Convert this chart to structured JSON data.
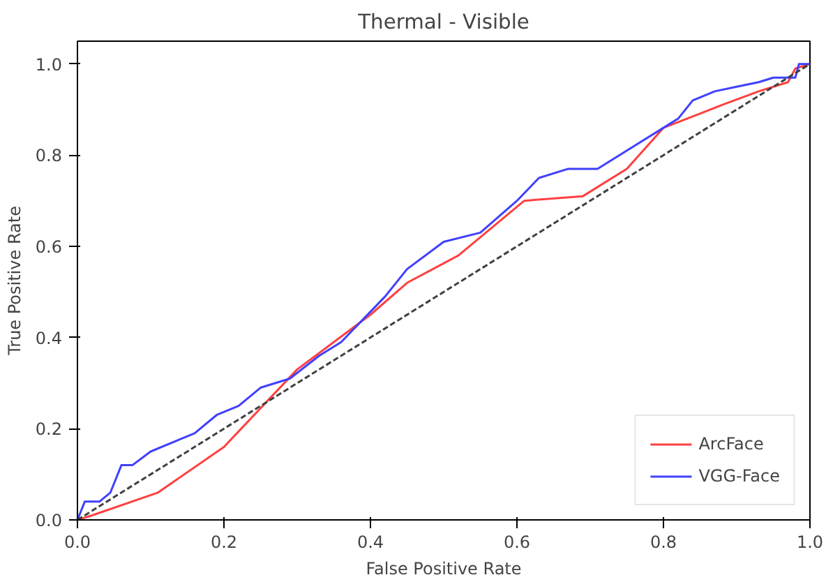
{
  "chart_data": {
    "type": "line",
    "title": "Thermal - Visible",
    "xlabel": "False Positive Rate",
    "ylabel": "True Positive Rate",
    "xlim": [
      0,
      1
    ],
    "ylim": [
      0,
      1.05
    ],
    "xticks": [
      {
        "value": 0,
        "label": "0.0"
      },
      0.2,
      0.4,
      0.6,
      0.8,
      {
        "value": 1,
        "label": "1.0"
      }
    ],
    "yticks": [
      {
        "value": 0,
        "label": "0.0"
      },
      0.2,
      0.4,
      0.6,
      0.8,
      {
        "value": 1,
        "label": "1.0"
      }
    ],
    "grid": false,
    "legend": "bottom right",
    "marker": "none",
    "series": [
      {
        "name": "ArcFace",
        "color": "#ff4040",
        "line_style": "solid",
        "x": [
          0,
          0.02,
          0.11,
          0.2,
          0.3,
          0.4,
          0.45,
          0.52,
          0.61,
          0.69,
          0.75,
          0.8,
          0.88,
          0.93,
          0.97,
          0.98,
          1
        ],
        "values": [
          0,
          0.01,
          0.06,
          0.16,
          0.33,
          0.45,
          0.52,
          0.58,
          0.7,
          0.71,
          0.77,
          0.86,
          0.91,
          0.94,
          0.96,
          0.99,
          1
        ]
      },
      {
        "name": "VGG-Face",
        "color": "#4040ff",
        "line_style": "solid",
        "x": [
          0,
          0.01,
          0.03,
          0.045,
          0.06,
          0.075,
          0.1,
          0.16,
          0.19,
          0.22,
          0.25,
          0.29,
          0.33,
          0.36,
          0.42,
          0.45,
          0.5,
          0.55,
          0.6,
          0.63,
          0.67,
          0.71,
          0.76,
          0.8,
          0.82,
          0.84,
          0.87,
          0.9,
          0.93,
          0.95,
          0.98,
          0.985,
          1
        ],
        "values": [
          0,
          0.04,
          0.04,
          0.06,
          0.12,
          0.12,
          0.15,
          0.19,
          0.23,
          0.25,
          0.29,
          0.31,
          0.36,
          0.39,
          0.49,
          0.55,
          0.61,
          0.63,
          0.7,
          0.75,
          0.77,
          0.77,
          0.82,
          0.86,
          0.88,
          0.92,
          0.94,
          0.95,
          0.96,
          0.97,
          0.97,
          1,
          1
        ]
      },
      {
        "color": "#404040",
        "line_style": "dashed",
        "x": [
          0,
          1
        ],
        "values": [
          0,
          1
        ]
      }
    ]
  }
}
